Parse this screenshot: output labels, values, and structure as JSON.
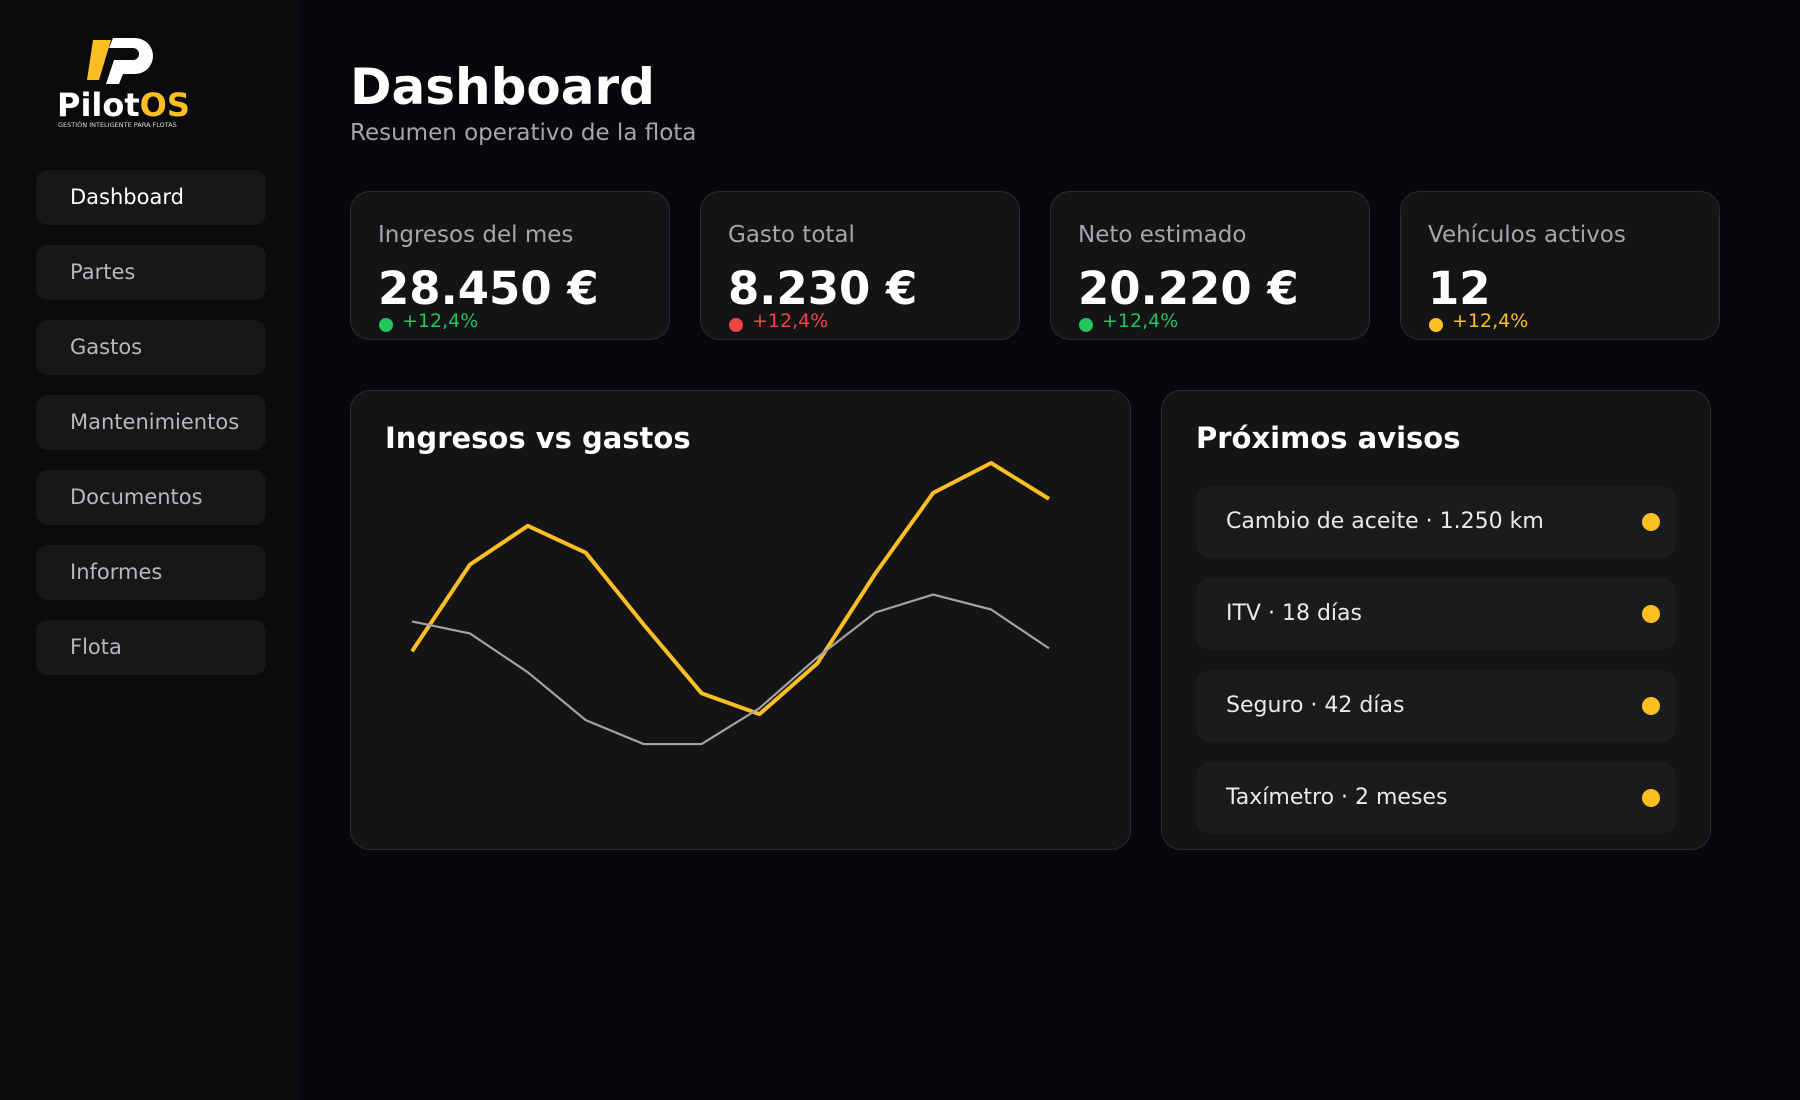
{
  "logo": {
    "name_main": "Pilot",
    "name_accent": "OS",
    "tagline": "GESTIÓN INTELIGENTE PARA FLOTAS"
  },
  "nav": [
    "Dashboard",
    "Partes",
    "Gastos",
    "Mantenimientos",
    "Documentos",
    "Informes",
    "Flota"
  ],
  "header": {
    "title": "Dashboard",
    "subtitle": "Resumen operativo de la flota"
  },
  "kpis": [
    {
      "label": "Ingresos del mes",
      "value": "28.450 €",
      "change": "+12,4%",
      "color": "#22c55e"
    },
    {
      "label": "Gasto total",
      "value": "8.230 €",
      "change": "+12,4%",
      "color": "#ef4444"
    },
    {
      "label": "Neto estimado",
      "value": "20.220 €",
      "change": "+12,4%",
      "color": "#22c55e"
    },
    {
      "label": "Vehículos activos",
      "value": "12",
      "change": "+12,4%",
      "color": "#fbbf24"
    }
  ],
  "chart_data": {
    "type": "line",
    "title": "Ingresos vs gastos",
    "ylim": [
      0,
      100
    ],
    "series": [
      {
        "color": "#fbbf24",
        "values": [
          36,
          65,
          78,
          69,
          45,
          22,
          15,
          32,
          62,
          89,
          99,
          87
        ]
      },
      {
        "color": "#a3a3a3",
        "values": [
          46,
          42,
          29,
          13,
          5,
          5,
          17,
          34,
          49,
          55,
          50,
          37
        ]
      }
    ]
  },
  "alerts": {
    "title": "Próximos avisos",
    "color": "#fbbf24",
    "items": [
      "Cambio de aceite · 1.250 km",
      "ITV · 18 días",
      "Seguro · 42 días",
      "Taxímetro · 2 meses"
    ]
  }
}
